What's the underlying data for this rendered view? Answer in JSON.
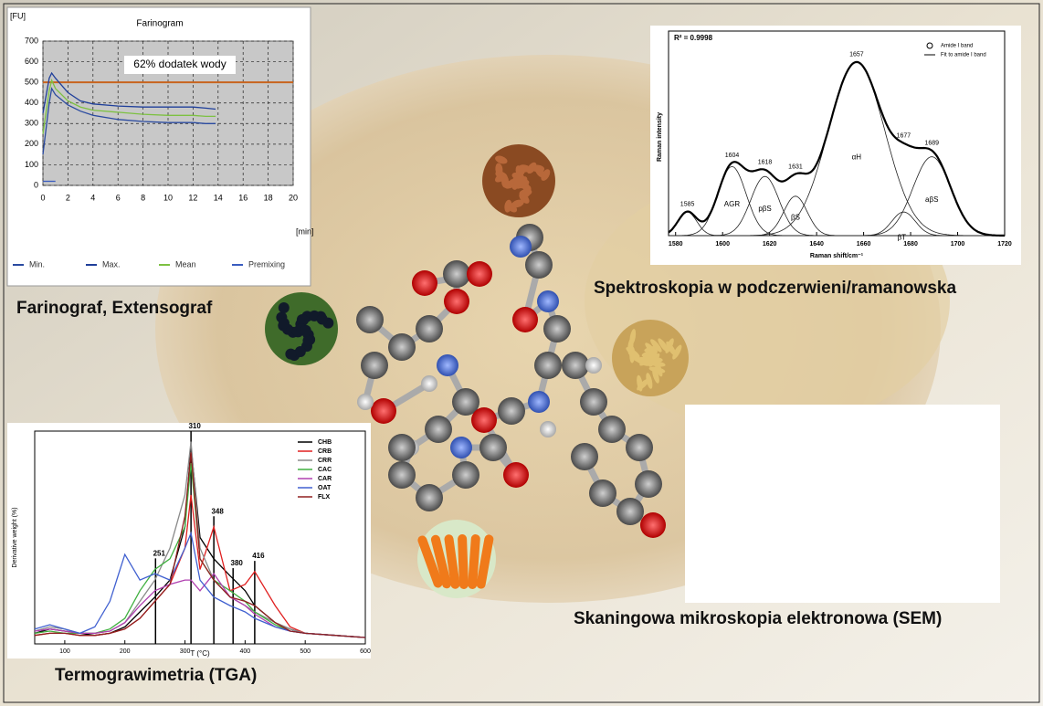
{
  "captions": [
    "Farinograf, Extensograf",
    "Spektroskopia w podczerwieni/ramanowska",
    "Termograwimetria (TGA)",
    "Skaningowa mikroskopia elektronowa (SEM)"
  ],
  "chart_data": [
    {
      "type": "line",
      "title": "Farinogram",
      "ylabel": "[FU]",
      "xlabel": "[min]",
      "annotation": "62% dodatek wody",
      "x": [
        0,
        0.5,
        0.7,
        1,
        2,
        3,
        4,
        6,
        8,
        10,
        12,
        13,
        13.8
      ],
      "series": [
        {
          "name": "Min.",
          "color": "#2a4aa0",
          "values": [
            150,
            400,
            470,
            440,
            390,
            360,
            340,
            320,
            310,
            305,
            305,
            300,
            300
          ]
        },
        {
          "name": "Max.",
          "color": "#1f3f9a",
          "values": [
            350,
            520,
            545,
            520,
            450,
            410,
            395,
            385,
            380,
            380,
            380,
            375,
            370
          ]
        },
        {
          "name": "Mean",
          "color": "#7dc142",
          "values": [
            250,
            460,
            510,
            470,
            410,
            380,
            365,
            355,
            345,
            340,
            340,
            335,
            335
          ]
        },
        {
          "name": "Premixing",
          "color": "#3a5cc0",
          "values": [
            20,
            20,
            20,
            20,
            null,
            null,
            null,
            null,
            null,
            null,
            null,
            null,
            null
          ]
        }
      ],
      "reference_line": 500,
      "reference_color": "#c8641e",
      "xlim": [
        0,
        20
      ],
      "xticks": [
        0,
        2,
        4,
        6,
        8,
        10,
        12,
        14,
        16,
        18,
        20
      ],
      "ylim": [
        0,
        700
      ],
      "yticks": [
        0,
        100,
        200,
        300,
        400,
        500,
        600,
        700
      ],
      "grid": true
    },
    {
      "type": "bands",
      "annotation": "R² = 0.9998",
      "xlabel": "Raman shift/cm⁻¹",
      "ylabel": "Raman intensity",
      "legend": [
        "Amide I band",
        "Fit to amide I band"
      ],
      "bands": [
        {
          "name": null,
          "center": 1585,
          "height": 12,
          "width": 4
        },
        {
          "name": "AGR",
          "center": 1604,
          "height": 35,
          "width": 6
        },
        {
          "name": "pβS",
          "center": 1618,
          "height": 30,
          "width": 6
        },
        {
          "name": "βS",
          "center": 1631,
          "height": 20,
          "width": 5
        },
        {
          "name": "αH",
          "center": 1657,
          "height": 88,
          "width": 12
        },
        {
          "name": "βT",
          "center": 1677,
          "height": 12,
          "width": 5
        },
        {
          "name": "aβS",
          "center": 1689,
          "height": 40,
          "width": 8
        }
      ],
      "xlim": [
        1577,
        1720
      ],
      "xticks": [
        1580,
        1600,
        1620,
        1640,
        1660,
        1680,
        1700,
        1720
      ],
      "ylim": [
        0,
        100
      ]
    },
    {
      "type": "line",
      "xlabel": "T (°C)",
      "ylabel": "Derivative weight (%)",
      "x": [
        50,
        75,
        100,
        125,
        150,
        175,
        200,
        225,
        250,
        275,
        300,
        310,
        325,
        348,
        375,
        400,
        416,
        450,
        475,
        500,
        550,
        600
      ],
      "series": [
        {
          "name": "CHB",
          "color": "#000000",
          "values": [
            0.05,
            0.07,
            0.06,
            0.05,
            0.04,
            0.05,
            0.08,
            0.15,
            0.22,
            0.3,
            0.55,
            0.93,
            0.5,
            0.4,
            0.32,
            0.25,
            0.18,
            0.1,
            0.07,
            0.05,
            0.04,
            0.03
          ]
        },
        {
          "name": "CRB",
          "color": "#e02020",
          "values": [
            0.04,
            0.05,
            0.05,
            0.04,
            0.04,
            0.05,
            0.07,
            0.12,
            0.2,
            0.28,
            0.45,
            0.7,
            0.35,
            0.55,
            0.25,
            0.28,
            0.34,
            0.18,
            0.08,
            0.05,
            0.04,
            0.03
          ]
        },
        {
          "name": "CRR",
          "color": "#8a8a8a",
          "values": [
            0.06,
            0.08,
            0.07,
            0.05,
            0.05,
            0.06,
            0.1,
            0.2,
            0.3,
            0.45,
            0.7,
            0.95,
            0.45,
            0.3,
            0.22,
            0.18,
            0.15,
            0.1,
            0.07,
            0.05,
            0.04,
            0.03
          ]
        },
        {
          "name": "CAC",
          "color": "#40b040",
          "values": [
            0.05,
            0.06,
            0.05,
            0.05,
            0.05,
            0.07,
            0.12,
            0.25,
            0.35,
            0.4,
            0.55,
            0.85,
            0.4,
            0.3,
            0.25,
            0.2,
            0.15,
            0.09,
            0.06,
            0.05,
            0.04,
            0.03
          ]
        },
        {
          "name": "CAR",
          "color": "#b040b0",
          "values": [
            0.06,
            0.07,
            0.06,
            0.05,
            0.05,
            0.06,
            0.1,
            0.18,
            0.25,
            0.28,
            0.3,
            0.3,
            0.25,
            0.33,
            0.22,
            0.18,
            0.14,
            0.08,
            0.06,
            0.05,
            0.04,
            0.03
          ]
        },
        {
          "name": "OAT",
          "color": "#4060d0",
          "values": [
            0.07,
            0.09,
            0.07,
            0.05,
            0.08,
            0.2,
            0.42,
            0.3,
            0.33,
            0.3,
            0.45,
            0.52,
            0.3,
            0.22,
            0.18,
            0.15,
            0.12,
            0.08,
            0.06,
            0.05,
            0.04,
            0.03
          ]
        },
        {
          "name": "FLX",
          "color": "#902020",
          "values": [
            0.04,
            0.05,
            0.05,
            0.04,
            0.04,
            0.05,
            0.07,
            0.12,
            0.2,
            0.28,
            0.6,
            0.9,
            0.4,
            0.3,
            0.22,
            0.2,
            0.18,
            0.1,
            0.06,
            0.05,
            0.04,
            0.03
          ]
        }
      ],
      "peak_markers": [
        251,
        310,
        348,
        380,
        416
      ],
      "xlim": [
        50,
        600
      ],
      "xticks": [
        100,
        200,
        300,
        400,
        500,
        600
      ],
      "ylim": [
        0,
        1
      ]
    }
  ]
}
